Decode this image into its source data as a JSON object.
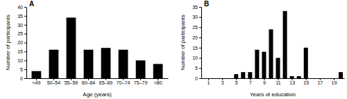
{
  "chart_data": [
    {
      "type": "bar",
      "title": "A",
      "categories": [
        "<49",
        "50–54",
        "55–59",
        "60–64",
        "65–69",
        "70–74",
        "75–79",
        ">80"
      ],
      "values": [
        4,
        16,
        34,
        16,
        17,
        16,
        10,
        8
      ],
      "color": "#000000",
      "xlabel": "Age (years)",
      "ylabel": "Number of participants",
      "ylim": [
        0,
        40
      ],
      "yticks": [
        0,
        5,
        10,
        15,
        20,
        25,
        30,
        35,
        40
      ],
      "grid": false
    },
    {
      "type": "bar",
      "title": "B",
      "x": [
        5,
        6,
        7,
        8,
        9,
        10,
        11,
        12,
        13,
        14,
        15,
        20
      ],
      "values": [
        2,
        3,
        3,
        14,
        13,
        24,
        10,
        33,
        1,
        1,
        15,
        3
      ],
      "color": "#000000",
      "xlabel": "Years of education",
      "ylabel": "Number of participants",
      "xlim": [
        0,
        20.5
      ],
      "xticks": [
        1,
        3,
        5,
        7,
        9,
        11,
        13,
        15,
        17,
        19
      ],
      "ylim": [
        0,
        35
      ],
      "yticks": [
        0,
        5,
        10,
        15,
        20,
        25,
        30,
        35
      ],
      "grid": false
    }
  ]
}
